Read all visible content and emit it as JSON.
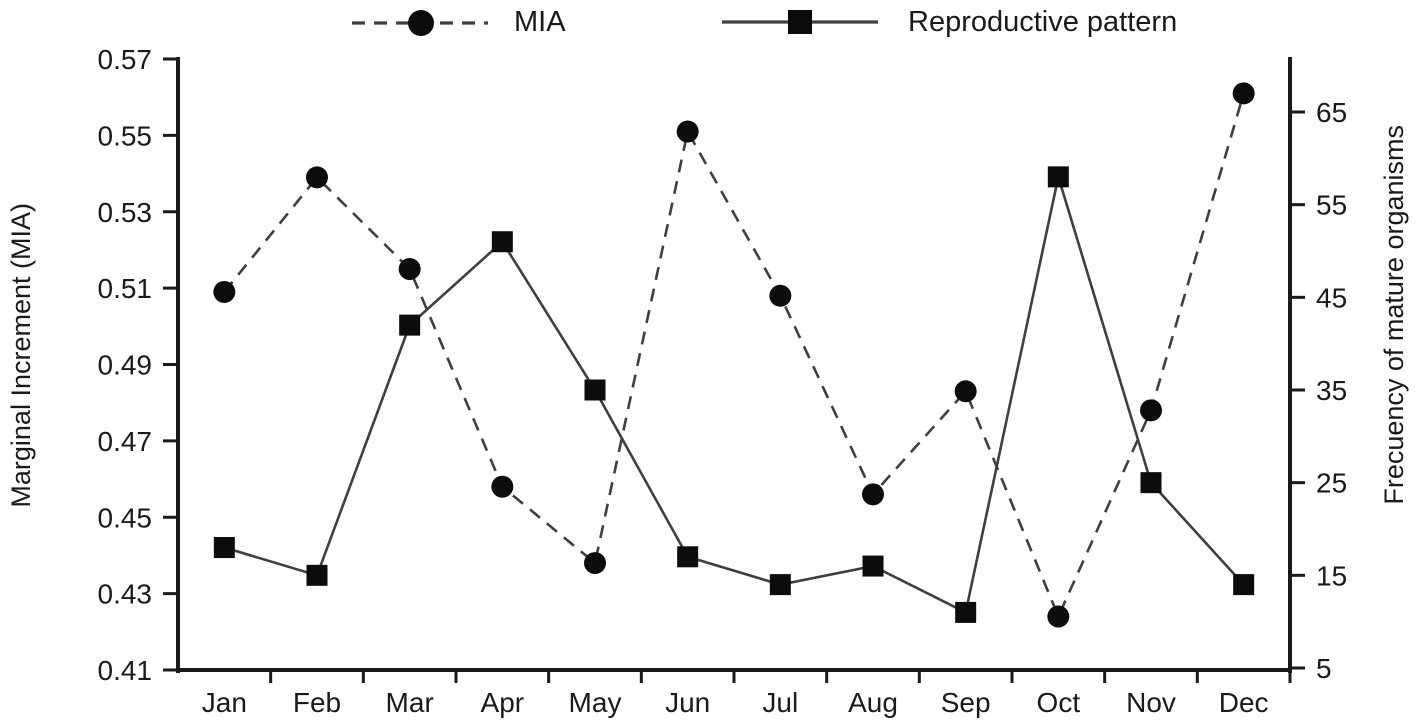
{
  "figure": {
    "background": "#ffffff",
    "ink_color": "#1a1a1a",
    "series_line_color": "#3f3f3f",
    "marker_color": "#0c0c0c"
  },
  "chart_data": {
    "type": "line",
    "title": "",
    "grid": false,
    "legend_position": "top",
    "categories": [
      "Jan",
      "Feb",
      "Mar",
      "Apr",
      "May",
      "Jun",
      "Jul",
      "Aug",
      "Sep",
      "Oct",
      "Nov",
      "Dec"
    ],
    "series": [
      {
        "name": "MIA",
        "axis": "left",
        "marker": "circle",
        "line_style": "dashed",
        "values": [
          0.509,
          0.539,
          0.515,
          0.458,
          0.438,
          0.551,
          0.508,
          0.456,
          0.483,
          0.424,
          0.478,
          0.561
        ]
      },
      {
        "name": "Reproductive pattern",
        "axis": "right",
        "marker": "square",
        "line_style": "solid",
        "values": [
          18,
          15,
          42,
          51,
          35,
          17,
          14,
          16,
          11,
          58,
          25,
          14
        ]
      }
    ],
    "left_axis": {
      "label": "Marginal Increment (MIA)",
      "min": 0.41,
      "max": 0.57,
      "ticks": [
        0.41,
        0.43,
        0.45,
        0.47,
        0.49,
        0.51,
        0.53,
        0.55,
        0.57
      ],
      "tick_decimals": 2
    },
    "right_axis": {
      "label": "Frecuency of mature organisms",
      "min": 5,
      "max": 65,
      "ticks": [
        5,
        15,
        25,
        35,
        45,
        55,
        65
      ],
      "tick_decimals": 0
    }
  }
}
